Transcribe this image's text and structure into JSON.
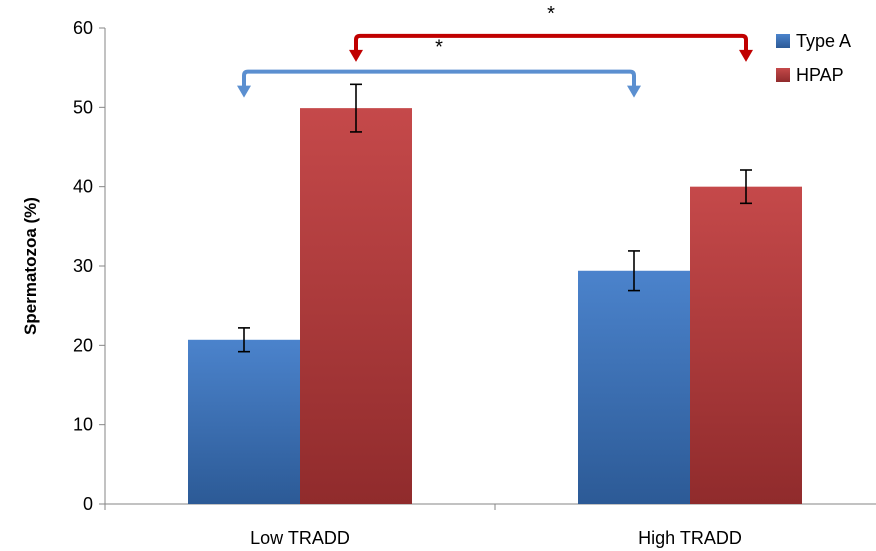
{
  "chart_data": {
    "type": "bar",
    "categories": [
      "Low TRADD",
      "High  TRADD"
    ],
    "series": [
      {
        "name": "Type A",
        "color": "#3B78C8",
        "values": [
          20.7,
          29.4
        ],
        "errors": [
          1.5,
          2.5
        ]
      },
      {
        "name": "HPAP",
        "color": "#C0393A",
        "values": [
          49.9,
          40.0
        ],
        "errors": [
          3.0,
          2.1
        ]
      }
    ],
    "ylabel": "Spermatozoa (%)",
    "xlabel": "",
    "ylim": [
      0,
      60
    ],
    "yticks": [
      0,
      10,
      20,
      30,
      40,
      50,
      60
    ],
    "grid": false,
    "legend": "top-right",
    "significance": [
      {
        "label": "*",
        "series": "Type A",
        "from_category": 0,
        "to_category": 1,
        "color": "#5B8FD0"
      },
      {
        "label": "*",
        "series": "HPAP",
        "from_category": 0,
        "to_category": 1,
        "color": "#C00000"
      }
    ]
  }
}
